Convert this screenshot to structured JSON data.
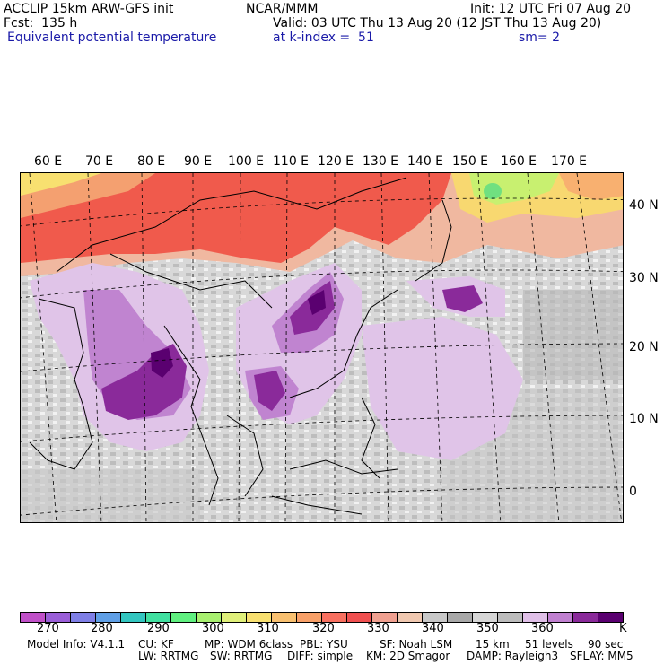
{
  "header": {
    "title": "ACCLIP 15km ARW-GFS init",
    "source": "NCAR/MMM",
    "init": "Init: 12 UTC Fri 07 Aug 20",
    "fcst": "Fcst:  135 h",
    "valid": "Valid: 03 UTC Thu 13 Aug 20 (12 JST Thu 13 Aug 20)",
    "field": "Equivalent potential temperature",
    "level": "at k-index =  51",
    "smoothing": "sm= 2"
  },
  "map": {
    "lon_labels": [
      "60 E",
      "70 E",
      "80 E",
      "90 E",
      "100 E",
      "110 E",
      "120 E",
      "130 E",
      "140 E",
      "150 E",
      "160 E",
      "170 E"
    ],
    "lat_labels": [
      "40 N",
      "30 N",
      "20 N",
      "10 N",
      "0"
    ]
  },
  "colorbar": {
    "unit": "K",
    "colors": [
      "#c050c8",
      "#9a5ed8",
      "#7f7fe6",
      "#5f9fe6",
      "#33c6c0",
      "#40e0a0",
      "#60f080",
      "#a8f070",
      "#e0f07a",
      "#f8e070",
      "#f8c070",
      "#f8a068",
      "#f87060",
      "#f05050",
      "#f0a090",
      "#f0c8b0",
      "#c8c8c8",
      "#a8a8a8",
      "#d6d6d6",
      "#bcbcbc",
      "#e0c0e8",
      "#c080d0",
      "#8a2a9a",
      "#5a0070"
    ],
    "labels": [
      "270",
      "280",
      "290",
      "300",
      "310",
      "320",
      "330",
      "340",
      "350",
      "360"
    ]
  },
  "footer": {
    "line1": [
      "Model Info: V4.1.1",
      "CU: KF",
      "MP: WDM 6class",
      "PBL: YSU",
      "SF: Noah LSM",
      "15 km",
      "51 levels",
      "90 sec"
    ],
    "line2": [
      "LW: RRTMG",
      "SW: RRTMG",
      "DIFF: simple",
      "KM: 2D Smagor",
      "DAMP: Rayleigh3",
      "SFLAY: MM5"
    ]
  }
}
